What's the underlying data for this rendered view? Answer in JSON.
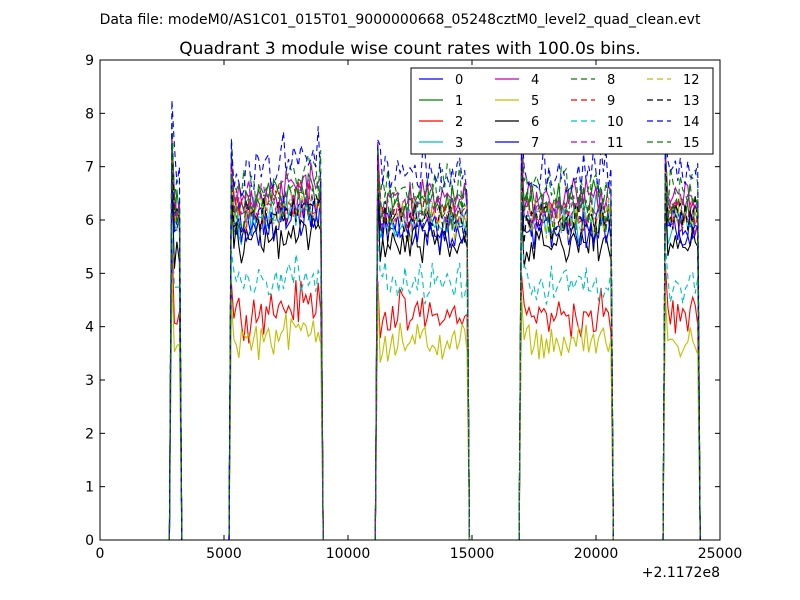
{
  "suptitle": "Data file: modeM0/AS1C01_015T01_9000000668_05248cztM0_level2_quad_clean.evt",
  "chart_data": {
    "type": "line",
    "title": "Quadrant 3 module wise count rates with 100.0s bins.",
    "xlabel": "",
    "ylabel": "",
    "xlim": [
      0,
      25000
    ],
    "ylim": [
      0,
      9
    ],
    "x_offset_label": "+2.1172e8",
    "xticks": [
      0,
      5000,
      10000,
      15000,
      20000,
      25000
    ],
    "xtick_labels": [
      "0",
      "5000",
      "10000",
      "15000",
      "20000",
      "25000"
    ],
    "yticks": [
      0,
      1,
      2,
      3,
      4,
      5,
      6,
      7,
      8,
      9
    ],
    "ytick_labels": [
      "0",
      "1",
      "2",
      "3",
      "4",
      "5",
      "6",
      "7",
      "8",
      "9"
    ],
    "grid": false,
    "legend_position": "top-right",
    "legend_columns": 4,
    "bin_seconds": 100,
    "segments": [
      {
        "start": 2900,
        "end": 3300
      },
      {
        "start": 5300,
        "end": 9000
      },
      {
        "start": 11200,
        "end": 14900
      },
      {
        "start": 17000,
        "end": 20700
      },
      {
        "start": 22800,
        "end": 24200
      }
    ],
    "series": [
      {
        "name": "0",
        "color": "#0000ff",
        "dash": "solid",
        "mean": 5.9,
        "noise": 0.35
      },
      {
        "name": "1",
        "color": "#008000",
        "dash": "solid",
        "mean": 6.3,
        "noise": 0.35
      },
      {
        "name": "2",
        "color": "#ff0000",
        "dash": "solid",
        "mean": 4.2,
        "noise": 0.35
      },
      {
        "name": "3",
        "color": "#00bfbf",
        "dash": "solid",
        "mean": 6.0,
        "noise": 0.35
      },
      {
        "name": "4",
        "color": "#bf00bf",
        "dash": "solid",
        "mean": 6.4,
        "noise": 0.35
      },
      {
        "name": "5",
        "color": "#bfbf00",
        "dash": "solid",
        "mean": 3.7,
        "noise": 0.3
      },
      {
        "name": "6",
        "color": "#000000",
        "dash": "solid",
        "mean": 5.5,
        "noise": 0.35
      },
      {
        "name": "7",
        "color": "#0000ff",
        "dash": "solid",
        "mean": 5.8,
        "noise": 0.35
      },
      {
        "name": "8",
        "color": "#008000",
        "dash": "dashed",
        "mean": 6.6,
        "noise": 0.4
      },
      {
        "name": "9",
        "color": "#ff0000",
        "dash": "dashed",
        "mean": 6.1,
        "noise": 0.35
      },
      {
        "name": "10",
        "color": "#00bfbf",
        "dash": "dashed",
        "mean": 4.8,
        "noise": 0.3
      },
      {
        "name": "11",
        "color": "#bf00bf",
        "dash": "dashed",
        "mean": 6.2,
        "noise": 0.35
      },
      {
        "name": "12",
        "color": "#bfbf00",
        "dash": "dashed",
        "mean": 6.0,
        "noise": 0.35
      },
      {
        "name": "13",
        "color": "#000000",
        "dash": "dashed",
        "mean": 6.0,
        "noise": 0.35
      },
      {
        "name": "14",
        "color": "#0000ff",
        "dash": "dashed",
        "mean": 6.9,
        "noise": 0.45
      },
      {
        "name": "15",
        "color": "#008000",
        "dash": "dashed",
        "mean": 6.2,
        "noise": 0.35
      }
    ]
  }
}
